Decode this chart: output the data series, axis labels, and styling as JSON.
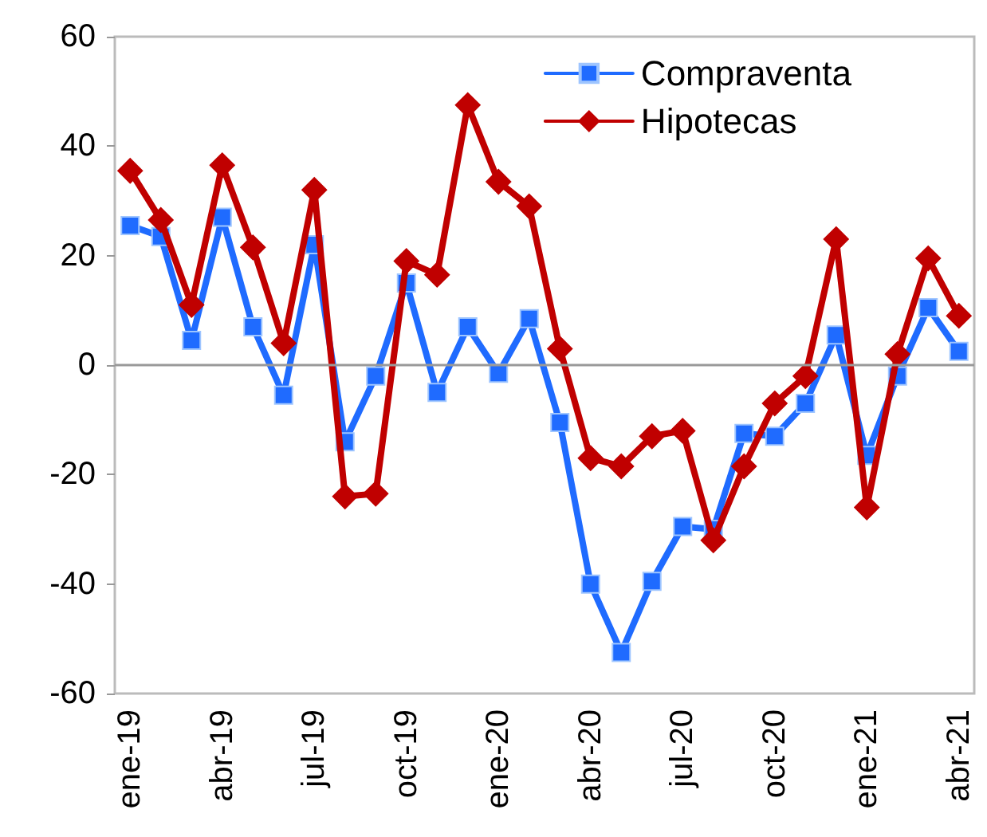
{
  "chart_data": {
    "type": "line",
    "categories": [
      "ene-19",
      null,
      null,
      "abr-19",
      null,
      null,
      "jul-19",
      null,
      null,
      "oct-19",
      null,
      null,
      "ene-20",
      null,
      null,
      "abr-20",
      null,
      null,
      "jul-20",
      null,
      null,
      "oct-20",
      null,
      null,
      "ene-21",
      null,
      null,
      "abr-21"
    ],
    "series": [
      {
        "name": "Compraventa",
        "color": "#1f6bff",
        "marker": "square",
        "values": [
          25.5,
          23.5,
          4.5,
          27,
          7,
          -5.5,
          22,
          -14,
          -2,
          15,
          -5,
          7,
          -1.5,
          8.5,
          -10.5,
          -40,
          -52.5,
          -39.5,
          -29.5,
          -30,
          -12.5,
          -13,
          -7,
          5.5,
          -16.5,
          -2,
          10.5,
          2.5
        ]
      },
      {
        "name": "Hipotecas",
        "color": "#c00000",
        "marker": "diamond",
        "values": [
          35.5,
          26.5,
          11,
          36.5,
          21.5,
          4,
          32,
          -24,
          -23.5,
          19,
          16.5,
          47.5,
          33.5,
          29,
          3,
          -17,
          -18.5,
          -13,
          -12,
          -32,
          -18.5,
          -7,
          -2,
          23,
          -26,
          2,
          19.5,
          9
        ]
      }
    ],
    "ylim": [
      -60,
      60
    ],
    "yticks": [
      -60,
      -40,
      -20,
      0,
      20,
      40,
      60
    ],
    "ref_lines": [
      {
        "axis": "y",
        "value": 0,
        "color": "#999999"
      }
    ],
    "grid": false,
    "legend": "top right",
    "line_style": "solid"
  }
}
